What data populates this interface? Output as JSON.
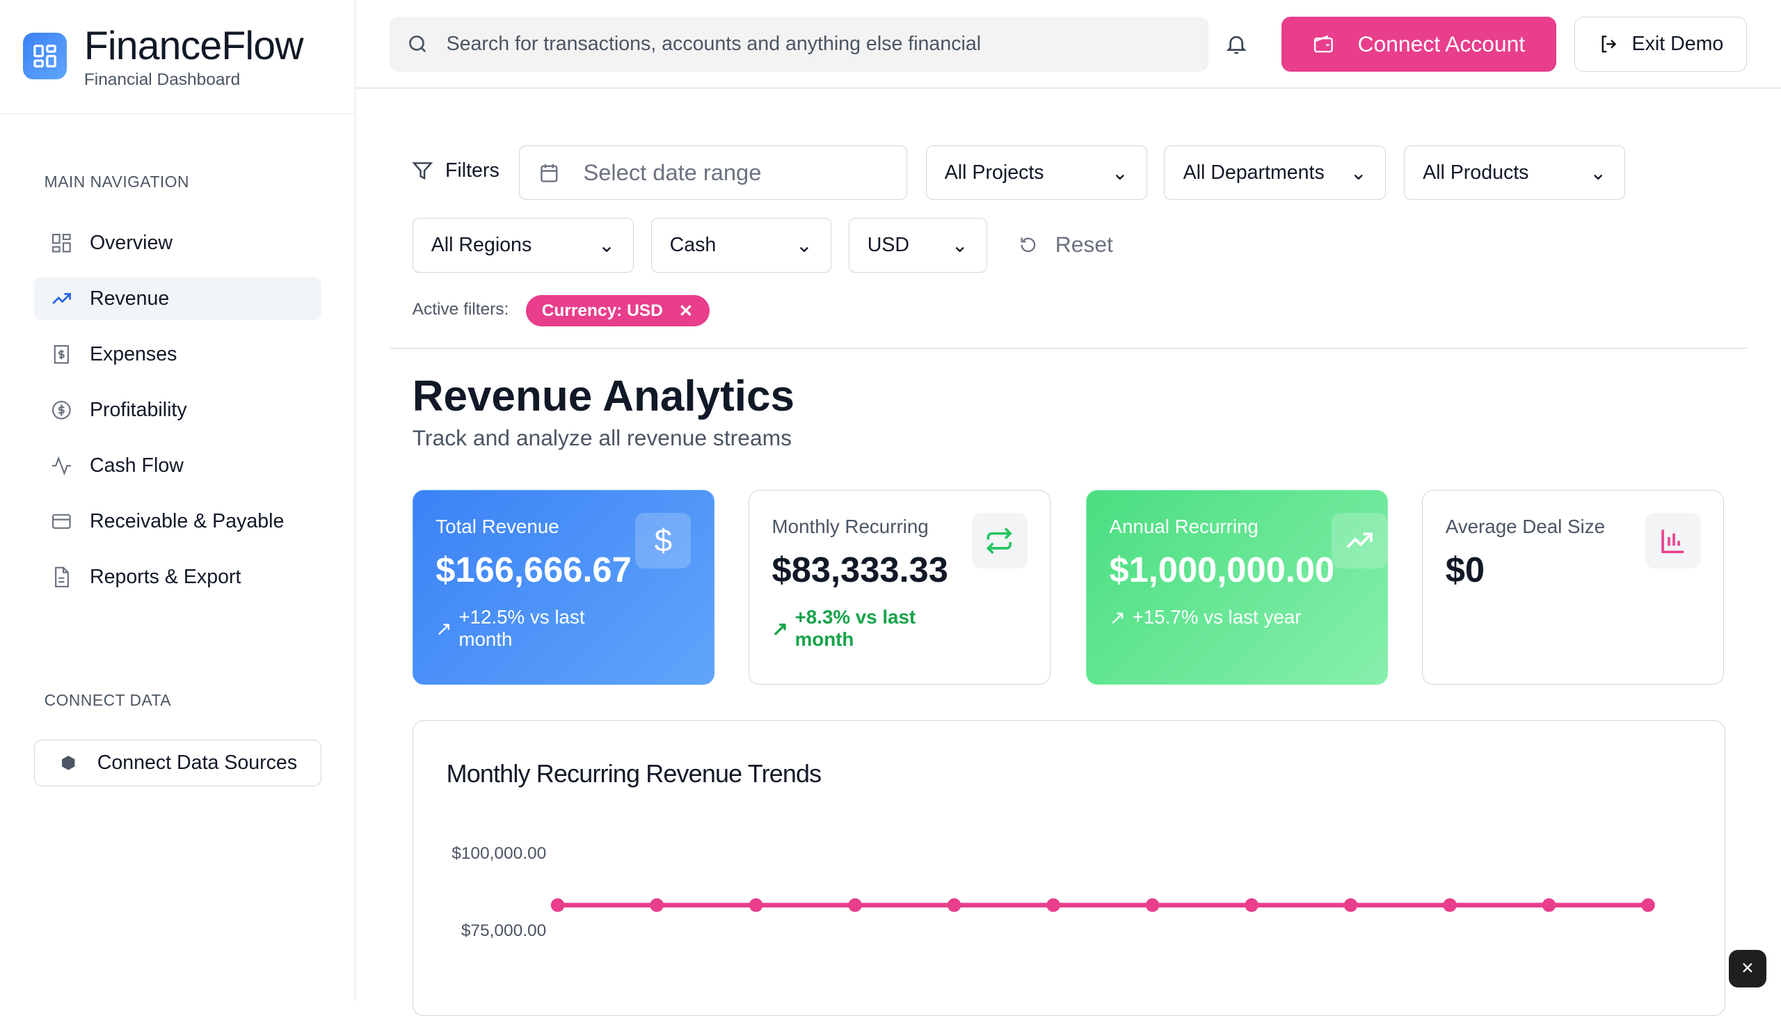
{
  "brand": {
    "name": "FinanceFlow",
    "subtitle": "Financial Dashboard"
  },
  "sidebar": {
    "main_heading": "MAIN NAVIGATION",
    "items": [
      {
        "label": "Overview",
        "icon": "grid-icon"
      },
      {
        "label": "Revenue",
        "icon": "trending-up-icon",
        "active": true
      },
      {
        "label": "Expenses",
        "icon": "receipt-icon"
      },
      {
        "label": "Profitability",
        "icon": "dollar-circle-icon"
      },
      {
        "label": "Cash Flow",
        "icon": "activity-icon"
      },
      {
        "label": "Receivable & Payable",
        "icon": "credit-card-icon"
      },
      {
        "label": "Reports & Export",
        "icon": "file-icon"
      }
    ],
    "connect_heading": "CONNECT DATA",
    "connect_button": "Connect Data Sources"
  },
  "topbar": {
    "search_placeholder": "Search for transactions, accounts and anything else financial",
    "connect_account": "Connect Account",
    "exit_demo": "Exit Demo"
  },
  "filters": {
    "label": "Filters",
    "date_placeholder": "Select date range",
    "projects": "All Projects",
    "departments": "All Departments",
    "products": "All Products",
    "regions": "All Regions",
    "basis": "Cash",
    "currency": "USD",
    "reset": "Reset",
    "active_label": "Active filters:",
    "active_chip": "Currency: USD"
  },
  "page": {
    "title": "Revenue Analytics",
    "subtitle": "Track and analyze all revenue streams"
  },
  "cards": [
    {
      "label": "Total Revenue",
      "value": "$166,666.67",
      "change": "+12.5% vs last month",
      "icon": "dollar-icon"
    },
    {
      "label": "Monthly Recurring",
      "value": "$83,333.33",
      "change": "+8.3% vs last month",
      "icon": "repeat-icon"
    },
    {
      "label": "Annual Recurring",
      "value": "$1,000,000.00",
      "change": "+15.7% vs last year",
      "icon": "trending-up-icon"
    },
    {
      "label": "Average Deal Size",
      "value": "$0",
      "change": "",
      "icon": "bar-chart-icon"
    }
  ],
  "colors": {
    "accent": "#e83e8c",
    "blue": "#3b82f6",
    "green": "#4ade80"
  },
  "chart_data": {
    "type": "line",
    "title": "Monthly Recurring Revenue Trends",
    "y_ticks": [
      "$100,000.00",
      "$75,000.00"
    ],
    "values": [
      83333.33,
      83333.33,
      83333.33,
      83333.33,
      83333.33,
      83333.33,
      83333.33,
      83333.33,
      83333.33,
      83333.33,
      83333.33,
      83333.33
    ],
    "color": "#e83e8c"
  }
}
